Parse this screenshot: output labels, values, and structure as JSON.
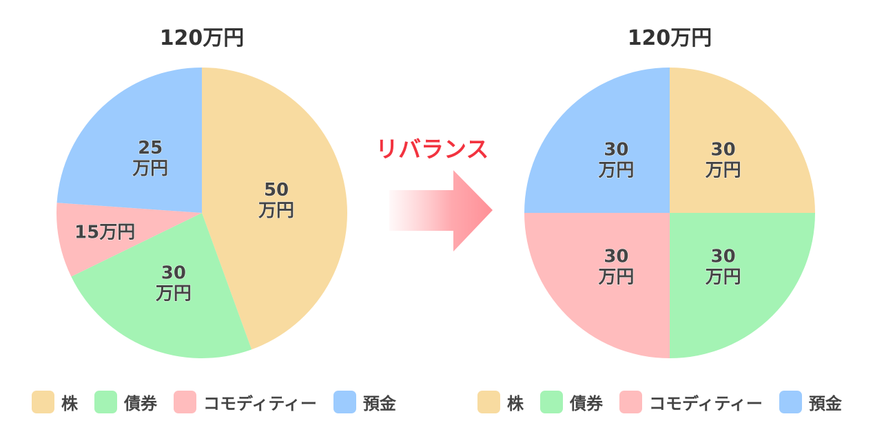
{
  "colors": {
    "stock": "#f8dba0",
    "bond": "#a4f3b4",
    "commodity": "#ffbcbd",
    "deposit": "#9ccbfe",
    "rebalance": "#f2333f"
  },
  "rebalance_label": "リバランス",
  "legend": [
    {
      "key": "stock",
      "label": "株"
    },
    {
      "key": "bond",
      "label": "債券"
    },
    {
      "key": "commodity",
      "label": "コモディティー"
    },
    {
      "key": "deposit",
      "label": "預金"
    }
  ],
  "chart_data": [
    {
      "type": "pie",
      "title": "120万円",
      "categories": [
        "株",
        "債券",
        "コモディティー",
        "預金"
      ],
      "values": [
        50,
        30,
        15,
        25
      ],
      "unit": "万円",
      "labels": [
        "50\n万円",
        "30\n万円",
        "15万円",
        "25\n万円"
      ],
      "legend_position": "bottom"
    },
    {
      "type": "pie",
      "title": "120万円",
      "categories": [
        "株",
        "債券",
        "コモディティー",
        "預金"
      ],
      "values": [
        30,
        30,
        30,
        30
      ],
      "unit": "万円",
      "labels": [
        "30\n万円",
        "30\n万円",
        "30\n万円",
        "30\n万円"
      ],
      "legend_position": "bottom"
    }
  ]
}
